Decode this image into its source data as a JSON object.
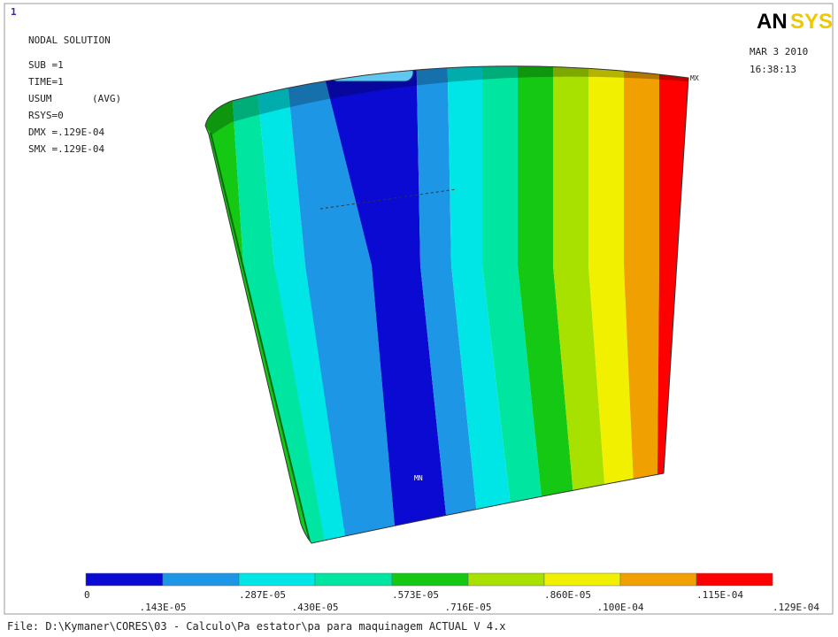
{
  "header": {
    "window_number": "1",
    "title": "NODAL SOLUTION",
    "info": [
      "SUB =1",
      "TIME=1",
      "USUM",
      "(AVG)",
      "RSYS=0",
      "DMX =.129E-04",
      "SMX =.129E-04"
    ],
    "logo_left": "AN",
    "logo_right": "SYS",
    "date": "MAR  3 2010",
    "time": "16:38:13"
  },
  "markers": {
    "max": "MX",
    "min": "MN"
  },
  "legend": {
    "labels": [
      "0",
      ".143E-05",
      ".287E-05",
      ".430E-05",
      ".573E-05",
      ".716E-05",
      ".860E-05",
      ".100E-04",
      ".115E-04",
      ".129E-04"
    ]
  },
  "footer": {
    "file": "File: D:\\Kymaner\\CORES\\03 - Calculo\\Pa estator\\pa para maquinagem ACTUAL V 4.x"
  }
}
